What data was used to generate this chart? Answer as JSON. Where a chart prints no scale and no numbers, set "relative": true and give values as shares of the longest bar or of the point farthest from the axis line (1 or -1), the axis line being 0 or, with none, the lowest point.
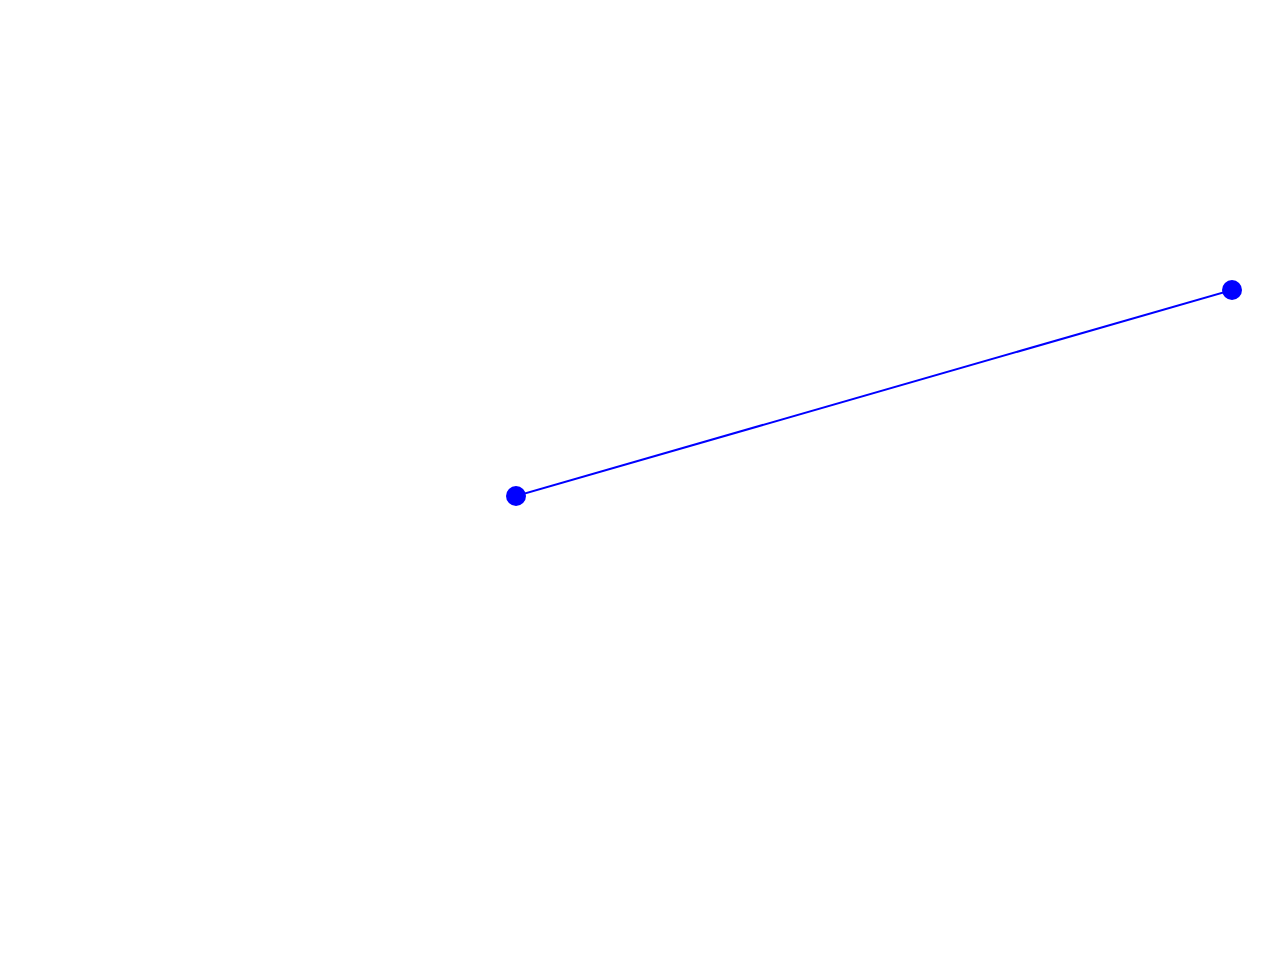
{
  "chart_data": {
    "type": "line",
    "relative": true,
    "categories": [
      null,
      null
    ],
    "series": [
      {
        "color": "#0000ff",
        "values": [
          0,
          1
        ]
      }
    ],
    "marker": "circle",
    "line_style": "solid"
  }
}
